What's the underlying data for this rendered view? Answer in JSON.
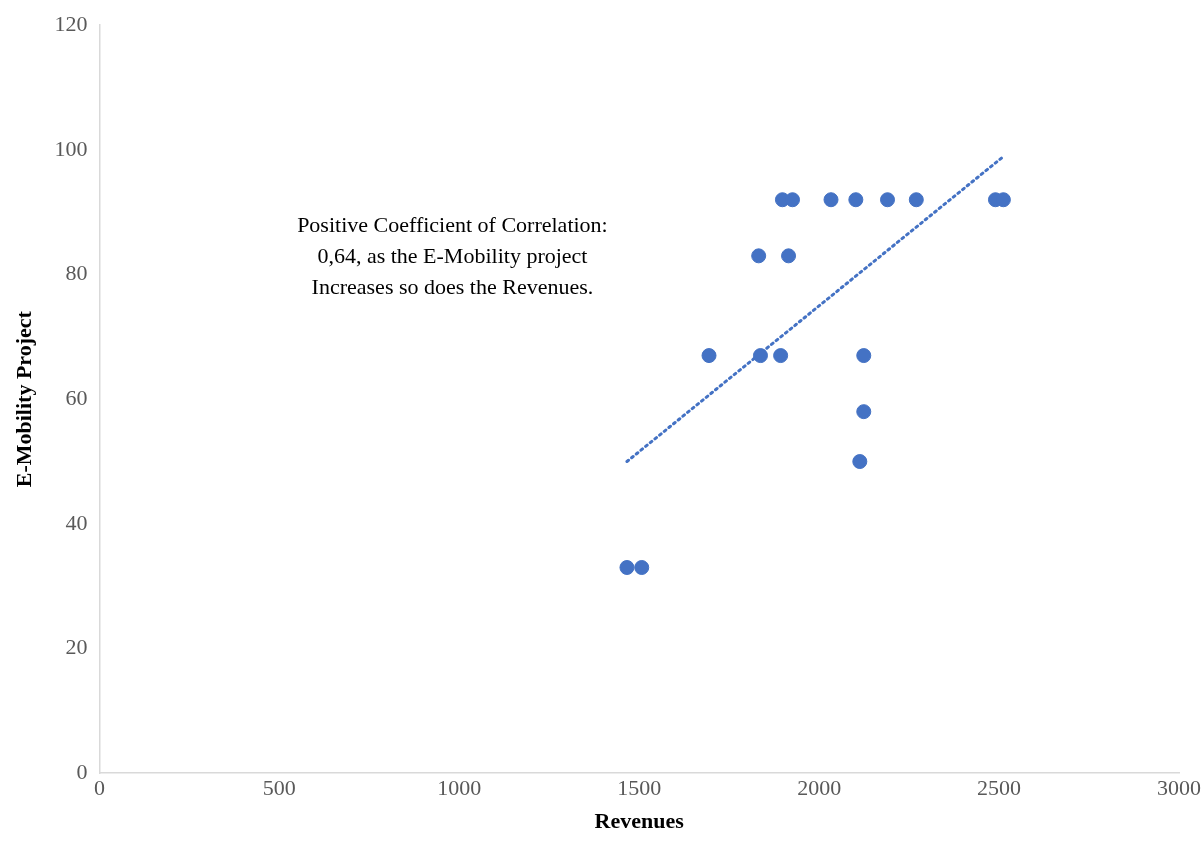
{
  "chart_data": {
    "type": "scatter",
    "xlabel": "Revenues",
    "ylabel": "E-Mobility Project",
    "xlim": [
      0,
      3000
    ],
    "xticks": [
      0,
      500,
      1000,
      1500,
      2000,
      2500,
      3000
    ],
    "ylim": [
      0,
      120
    ],
    "yticks": [
      0,
      20,
      40,
      60,
      80,
      100,
      120
    ],
    "grid": false,
    "legend": false,
    "marker": "circle",
    "series": [
      {
        "color": "#4472c4",
        "x": [
          1466,
          1507,
          1694,
          1832,
          1837,
          1893,
          1898,
          1915,
          1926,
          2033,
          2102,
          2190,
          2270,
          2124,
          2124,
          2113,
          2490,
          2512
        ],
        "values": [
          33,
          33,
          67,
          83,
          67,
          67,
          92,
          83,
          92,
          92,
          92,
          92,
          92,
          67,
          58,
          50,
          92,
          92
        ]
      },
      {
        "type": "line",
        "color": "#4472c4",
        "marker": "none",
        "line_style": "dotted",
        "x": [
          1466,
          2507
        ],
        "values": [
          50,
          98.7
        ]
      }
    ],
    "annotations": [
      "Positive Coefficient of Correlation:\n0,64, as the E-Mobility project\nIncreases so does the Revenues."
    ]
  }
}
